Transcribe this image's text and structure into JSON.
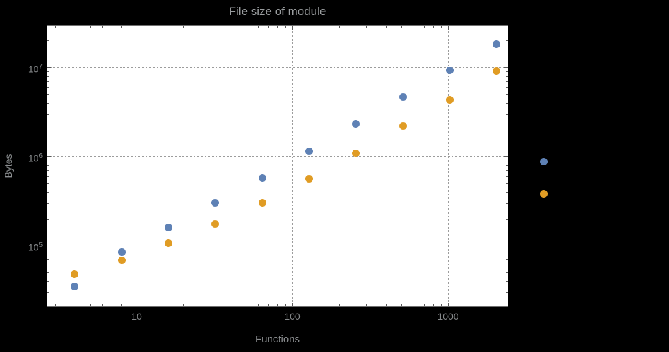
{
  "page": {
    "background_color": "#000000",
    "plot_background_color": "#ffffff"
  },
  "chart": {
    "title": "File size of module",
    "x_axis_label": "Functions",
    "y_axis_label": "Bytes",
    "x_ticks": [
      {
        "value": 10,
        "label": "10"
      },
      {
        "value": 100,
        "label": "100"
      },
      {
        "value": 1000,
        "label": "1000"
      }
    ],
    "y_ticks": [
      {
        "value": 100000,
        "base": "10",
        "exponent": "5"
      },
      {
        "value": 1000000,
        "base": "10",
        "exponent": "6"
      },
      {
        "value": 10000000,
        "base": "10",
        "exponent": "7"
      }
    ]
  },
  "chart_data": {
    "type": "scatter",
    "title": "File size of module",
    "xlabel": "Functions",
    "ylabel": "Bytes",
    "x_scale": "log",
    "y_scale": "log",
    "x_range": [
      2.7,
      2440
    ],
    "y_range": [
      21000,
      29000000
    ],
    "grid": {
      "x": [
        10,
        100,
        1000
      ],
      "y": [
        100000,
        1000000,
        10000000
      ],
      "style": "dotted"
    },
    "legend": "none (two unlabeled colored markers appear to the right of the frame)",
    "series": [
      {
        "name": "series-blue",
        "color": "#5E81B5",
        "points": [
          [
            4,
            35000
          ],
          [
            8,
            85000
          ],
          [
            16,
            160000
          ],
          [
            32,
            300000
          ],
          [
            64,
            570000
          ],
          [
            128,
            1150000
          ],
          [
            256,
            2300000
          ],
          [
            512,
            4600000
          ],
          [
            1024,
            9300000
          ],
          [
            2048,
            18000000
          ]
        ]
      },
      {
        "name": "series-orange",
        "color": "#E09C24",
        "points": [
          [
            4,
            48000
          ],
          [
            8,
            68000
          ],
          [
            16,
            107000
          ],
          [
            32,
            175000
          ],
          [
            64,
            300000
          ],
          [
            128,
            560000
          ],
          [
            256,
            1080000
          ],
          [
            512,
            2200000
          ],
          [
            1024,
            4300000
          ],
          [
            2048,
            9000000
          ]
        ]
      }
    ],
    "extra_markers_outside_frame": [
      {
        "color": "#5E81B5",
        "x": 4096,
        "y": 880000
      },
      {
        "color": "#E09C24",
        "x": 4096,
        "y": 380000
      }
    ]
  }
}
